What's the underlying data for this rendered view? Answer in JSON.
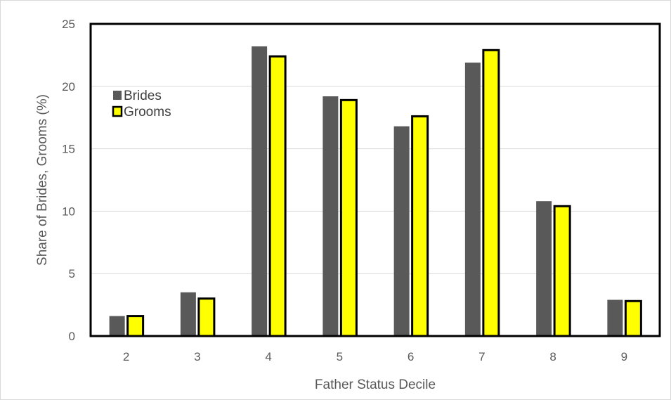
{
  "chart_data": {
    "type": "bar",
    "categories": [
      "2",
      "3",
      "4",
      "5",
      "6",
      "7",
      "8",
      "9"
    ],
    "series": [
      {
        "name": "Brides",
        "values": [
          1.6,
          3.5,
          23.2,
          19.2,
          16.8,
          21.9,
          10.8,
          2.9
        ]
      },
      {
        "name": "Grooms",
        "values": [
          1.6,
          3.0,
          22.4,
          18.9,
          17.6,
          22.9,
          10.4,
          2.8
        ]
      }
    ],
    "title": "",
    "xlabel": "Father Status Decile",
    "ylabel": "Share of Brides, Grooms (%)",
    "ylim": [
      0,
      25
    ],
    "yticks": [
      "0",
      "5",
      "10",
      "15",
      "20",
      "25"
    ],
    "grid": true,
    "legend_position": "top-left",
    "colors": {
      "Brides": "#595959",
      "Grooms": "#ffff00",
      "grooms_outline": "#000000",
      "gridline": "#d9d9d9"
    }
  }
}
